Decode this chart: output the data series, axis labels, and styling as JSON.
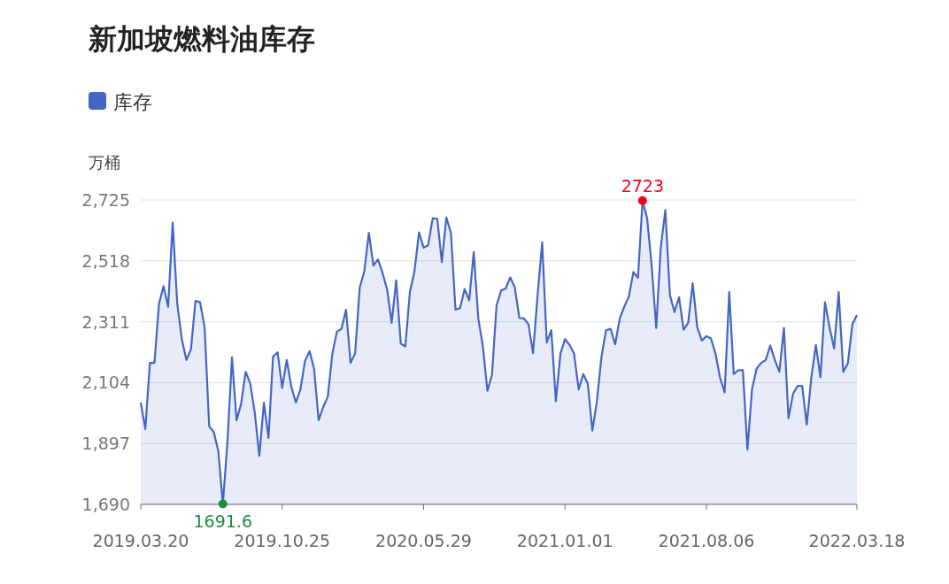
{
  "chart_data": {
    "type": "area",
    "title": "新加坡燃料油库存",
    "ylabel": "万桶",
    "categories": [
      "2019.03.20",
      null,
      null,
      null,
      null,
      null,
      null,
      null,
      null,
      null,
      null,
      null,
      null,
      null,
      null,
      null,
      null,
      null,
      null,
      null,
      null,
      null,
      null,
      null,
      null,
      null,
      null,
      null,
      null,
      null,
      null,
      "2019.10.25",
      null,
      null,
      null,
      null,
      null,
      null,
      null,
      null,
      null,
      null,
      null,
      null,
      null,
      null,
      null,
      null,
      null,
      null,
      null,
      null,
      null,
      null,
      null,
      null,
      null,
      null,
      null,
      null,
      null,
      null,
      "2020.05.29",
      null,
      null,
      null,
      null,
      null,
      null,
      null,
      null,
      null,
      null,
      null,
      null,
      null,
      null,
      null,
      null,
      null,
      null,
      null,
      null,
      null,
      null,
      null,
      null,
      null,
      null,
      null,
      null,
      null,
      null,
      "2021.01.01",
      null,
      null,
      null,
      null,
      null,
      null,
      null,
      null,
      null,
      null,
      null,
      null,
      null,
      null,
      null,
      null,
      null,
      null,
      null,
      null,
      null,
      null,
      null,
      null,
      null,
      null,
      null,
      null,
      null,
      null,
      "2021.08.06",
      null,
      null,
      null,
      null,
      null,
      null,
      null,
      null,
      null,
      null,
      null,
      null,
      null,
      null,
      null,
      null,
      null,
      null,
      null,
      null,
      null,
      null,
      null,
      null,
      null,
      null,
      null,
      null,
      null,
      null,
      null,
      null,
      "2022.03.18"
    ],
    "series": [
      {
        "name": "库存",
        "color": "#4466c4",
        "values": [
          2036,
          1946,
          2171,
          2171,
          2372,
          2432,
          2362,
          2648,
          2372,
          2252,
          2181,
          2217,
          2382,
          2377,
          2292,
          1956,
          1936,
          1871,
          1691.6,
          1901,
          2190,
          1976,
          2031,
          2141,
          2101,
          2001,
          1855,
          2036,
          1916,
          2192,
          2207,
          2086,
          2181,
          2091,
          2036,
          2081,
          2177,
          2211,
          2151,
          1976,
          2021,
          2056,
          2202,
          2277,
          2287,
          2352,
          2171,
          2204,
          2427,
          2482,
          2613,
          2502,
          2523,
          2477,
          2422,
          2307,
          2452,
          2237,
          2227,
          2412,
          2482,
          2615,
          2563,
          2571,
          2663,
          2661,
          2514,
          2665,
          2613,
          2352,
          2357,
          2422,
          2384,
          2548,
          2322,
          2227,
          2076,
          2131,
          2367,
          2417,
          2424,
          2462,
          2427,
          2324,
          2322,
          2302,
          2204,
          2402,
          2581,
          2240,
          2282,
          2041,
          2202,
          2252,
          2232,
          2202,
          2081,
          2133,
          2101,
          1941,
          2041,
          2192,
          2282,
          2287,
          2234,
          2322,
          2362,
          2397,
          2480,
          2460,
          2723,
          2663,
          2502,
          2290,
          2563,
          2691,
          2402,
          2344,
          2394,
          2284,
          2307,
          2442,
          2292,
          2247,
          2262,
          2254,
          2202,
          2121,
          2071,
          2412,
          2133,
          2146,
          2146,
          1876,
          2081,
          2151,
          2171,
          2181,
          2230,
          2181,
          2141,
          2290,
          1983,
          2066,
          2093,
          2093,
          1961,
          2121,
          2232,
          2123,
          2377,
          2292,
          2220,
          2412,
          2141,
          2169,
          2302,
          2334
        ]
      }
    ],
    "ylim": [
      1690,
      2725
    ],
    "yticks": [
      {
        "value": 1690,
        "label": "1,690"
      },
      {
        "value": 1897,
        "label": "1,897"
      },
      {
        "value": 2104,
        "label": "2,104"
      },
      {
        "value": 2311,
        "label": "2,311"
      },
      {
        "value": 2518,
        "label": "2,518"
      },
      {
        "value": 2725,
        "label": "2,725"
      }
    ],
    "grid": "y",
    "legend": "top left",
    "annotations": [
      {
        "text": "2723",
        "y": 2723
      },
      {
        "text": "1691.6",
        "y": 1691.6
      }
    ]
  }
}
